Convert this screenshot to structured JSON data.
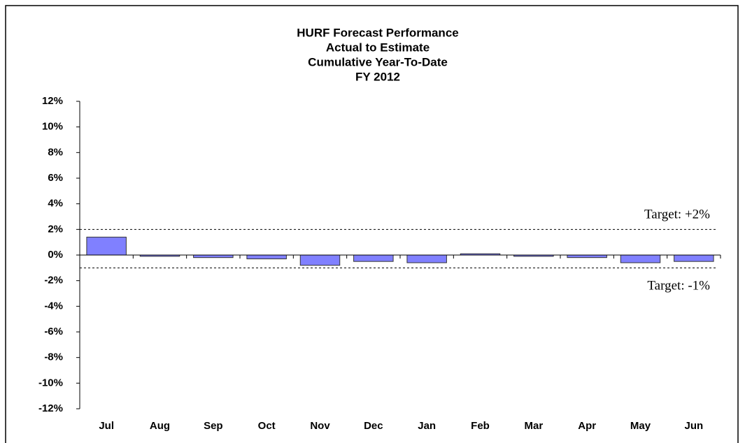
{
  "chart_data": {
    "type": "bar",
    "title": [
      "HURF Forecast Performance",
      "Actual to Estimate",
      "Cumulative Year-To-Date",
      "FY 2012"
    ],
    "categories": [
      "Jul",
      "Aug",
      "Sep",
      "Oct",
      "Nov",
      "Dec",
      "Jan",
      "Feb",
      "Mar",
      "Apr",
      "May",
      "Jun"
    ],
    "values": [
      1.4,
      -0.1,
      -0.2,
      -0.3,
      -0.8,
      -0.5,
      -0.6,
      0.1,
      -0.1,
      -0.2,
      -0.6,
      -0.5
    ],
    "color": "#8080ff",
    "ylim": [
      -12,
      12
    ],
    "yticks": [
      {
        "value": 12,
        "label": "12%"
      },
      {
        "value": 10,
        "label": "10%"
      },
      {
        "value": 8,
        "label": "8%"
      },
      {
        "value": 6,
        "label": "6%"
      },
      {
        "value": 4,
        "label": "4%"
      },
      {
        "value": 2,
        "label": "2%"
      },
      {
        "value": 0,
        "label": "0%"
      },
      {
        "value": -2,
        "label": "-2%"
      },
      {
        "value": -4,
        "label": "-4%"
      },
      {
        "value": -6,
        "label": "-6%"
      },
      {
        "value": -8,
        "label": "-8%"
      },
      {
        "value": -10,
        "label": "-10%"
      },
      {
        "value": -12,
        "label": "-12%"
      }
    ],
    "grid": false,
    "reference_lines": [
      {
        "value": 2,
        "label": "Target: +2%"
      },
      {
        "value": -1,
        "label": "Target: -1%"
      }
    ]
  }
}
